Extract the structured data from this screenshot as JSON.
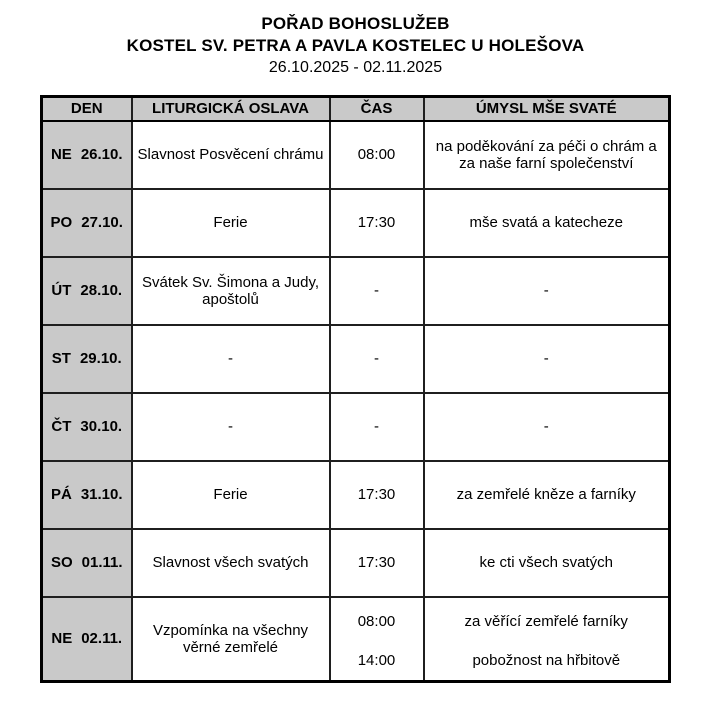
{
  "header": {
    "title": "POŘAD BOHOSLUŽEB",
    "subtitle": "KOSTEL SV. PETRA A PAVLA KOSTELEC U HOLEŠOVA",
    "date_range": "26.10.2025 - 02.11.2025"
  },
  "table": {
    "columns": [
      "DEN",
      "LITURGICKÁ OSLAVA",
      "ČAS",
      "ÚMYSL MŠE SVATÉ"
    ],
    "rows": [
      {
        "day": "NE",
        "date": "26.10.",
        "celebration": "Slavnost Posvěcení chrámu",
        "time": "08:00",
        "intention": "na poděkování za péči o chrám a za naše farní společenství"
      },
      {
        "day": "PO",
        "date": "27.10.",
        "celebration": "Ferie",
        "time": "17:30",
        "intention": "mše svatá a katecheze"
      },
      {
        "day": "ÚT",
        "date": "28.10.",
        "celebration": "Svátek Sv. Šimona a Judy, apoštolů",
        "time": "-",
        "intention": "-"
      },
      {
        "day": "ST",
        "date": "29.10.",
        "celebration": "-",
        "time": "-",
        "intention": "-"
      },
      {
        "day": "ČT",
        "date": "30.10.",
        "celebration": "-",
        "time": "-",
        "intention": "-"
      },
      {
        "day": "PÁ",
        "date": "31.10.",
        "celebration": "Ferie",
        "time": "17:30",
        "intention": "za zemřelé kněze a farníky"
      },
      {
        "day": "SO",
        "date": "01.11.",
        "celebration": "Slavnost všech svatých",
        "time": "17:30",
        "intention": "ke cti všech svatých"
      },
      {
        "day": "NE",
        "date": "02.11.",
        "celebration": "Vzpomínka na všechny věrné zemřelé",
        "entries": [
          {
            "time": "08:00",
            "intention": "za věřící zemřelé farníky"
          },
          {
            "time": "14:00",
            "intention": "pobožnost na hřbitově"
          }
        ]
      }
    ]
  },
  "colors": {
    "header_row_bg": "#c9c9c9",
    "day_column_bg": "#c9c9c9",
    "border": "#000000",
    "text": "#000000"
  }
}
